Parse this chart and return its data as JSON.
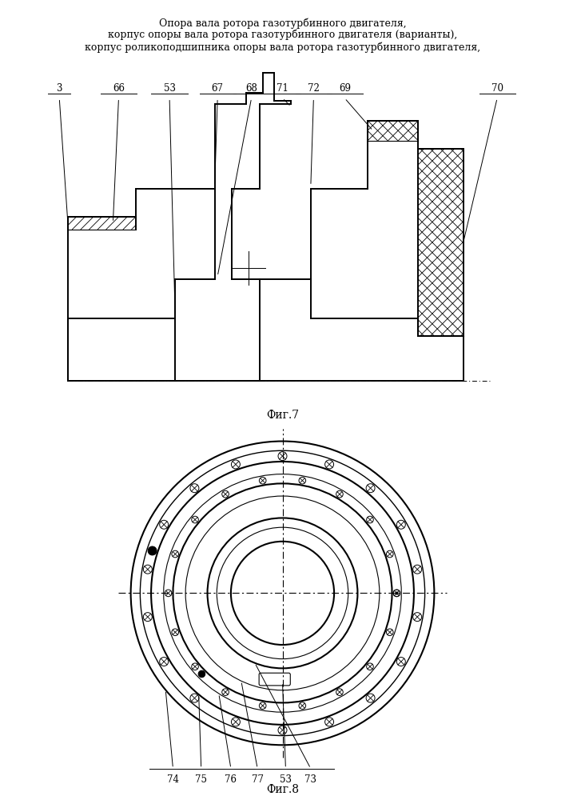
{
  "title_lines": [
    "Опора вала ротора газотурбинного двигателя,",
    "корпус опоры вала ротора газотурбинного двигателя (варианты),",
    "корпус роликоподшипника опоры вала ротора газотурбинного двигателя,"
  ],
  "fig7_caption": "Фиг.7",
  "fig8_caption": "Фиг.8",
  "line_color": "#000000",
  "bg_color": "#ffffff"
}
